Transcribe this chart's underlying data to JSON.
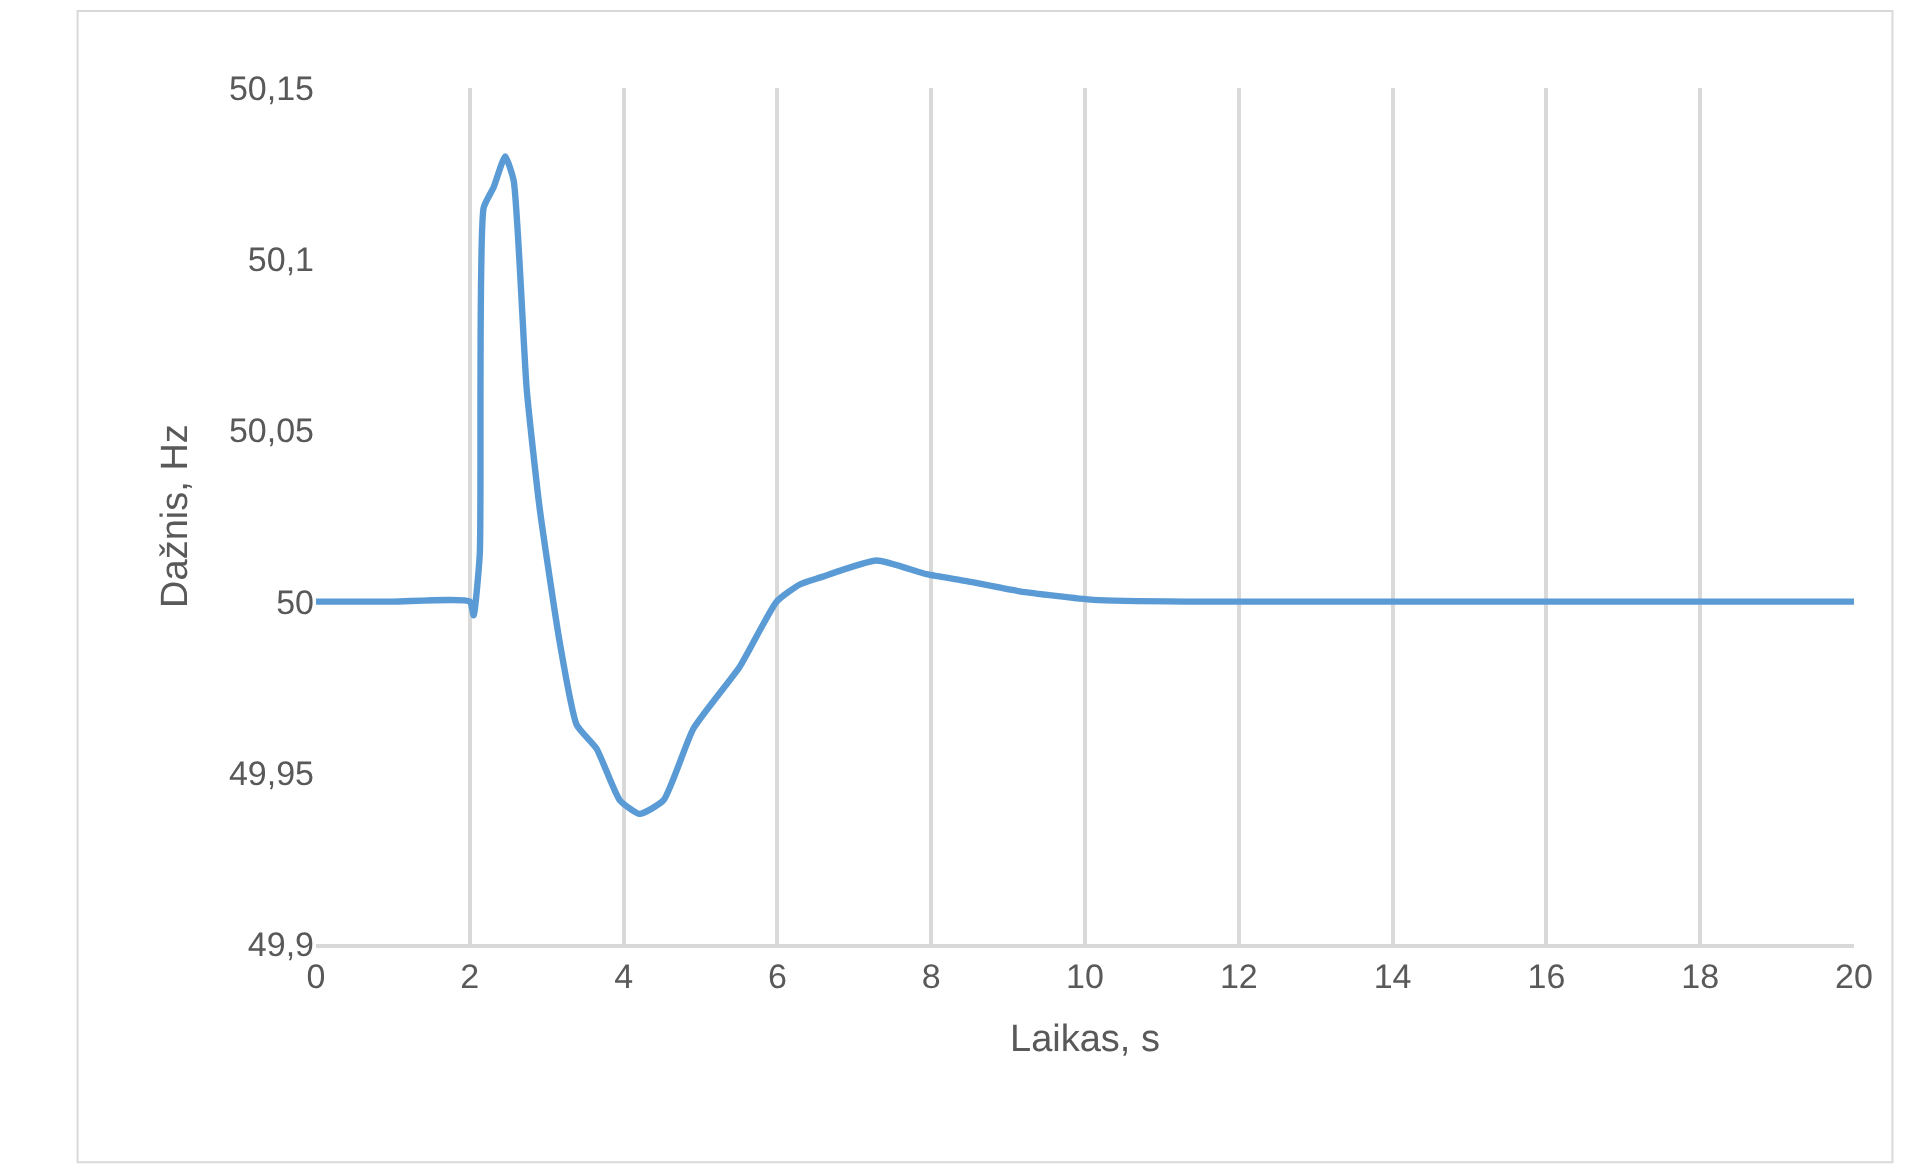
{
  "chart_data": {
    "type": "line",
    "xlabel": "Laikas, s",
    "ylabel": "Dažnis, Hz",
    "x": [
      0,
      1,
      2.0,
      2.05,
      2.13,
      2.18,
      2.31,
      2.46,
      2.57,
      2.74,
      2.91,
      3.17,
      3.39,
      3.65,
      3.95,
      4.21,
      4.52,
      4.91,
      5.51,
      5.99,
      6.29,
      6.55,
      7.29,
      7.94,
      8.46,
      9.15,
      10.11,
      11.3,
      12,
      14,
      16,
      18,
      20
    ],
    "series": [
      {
        "color": "#5b9bd5",
        "values": [
          50,
          50,
          50,
          49.996,
          50.014,
          50.115,
          50.121,
          50.13,
          50.123,
          50.062,
          50.027,
          49.988,
          49.964,
          49.957,
          49.942,
          49.938,
          49.942,
          49.963,
          49.981,
          50.0,
          50.005,
          50.007,
          50.012,
          50.008,
          50.006,
          50.003,
          50.0005,
          50.0,
          50,
          50,
          50,
          50,
          50
        ]
      }
    ],
    "xlim": [
      0,
      20
    ],
    "xticks": [
      0,
      2,
      4,
      6,
      8,
      10,
      12,
      14,
      16,
      18,
      20
    ],
    "ylim": [
      49.9,
      50.15
    ],
    "yticks": [
      {
        "value": 49.9,
        "label": "49,9"
      },
      {
        "value": 49.95,
        "label": "49,95"
      },
      {
        "value": 50,
        "label": "50"
      },
      {
        "value": 50.05,
        "label": "50,05"
      },
      {
        "value": 50.1,
        "label": "50,1"
      },
      {
        "value": 50.15,
        "label": "50,15"
      }
    ],
    "grid": "x",
    "legend": false,
    "marker": "none",
    "line_style": "solid"
  }
}
